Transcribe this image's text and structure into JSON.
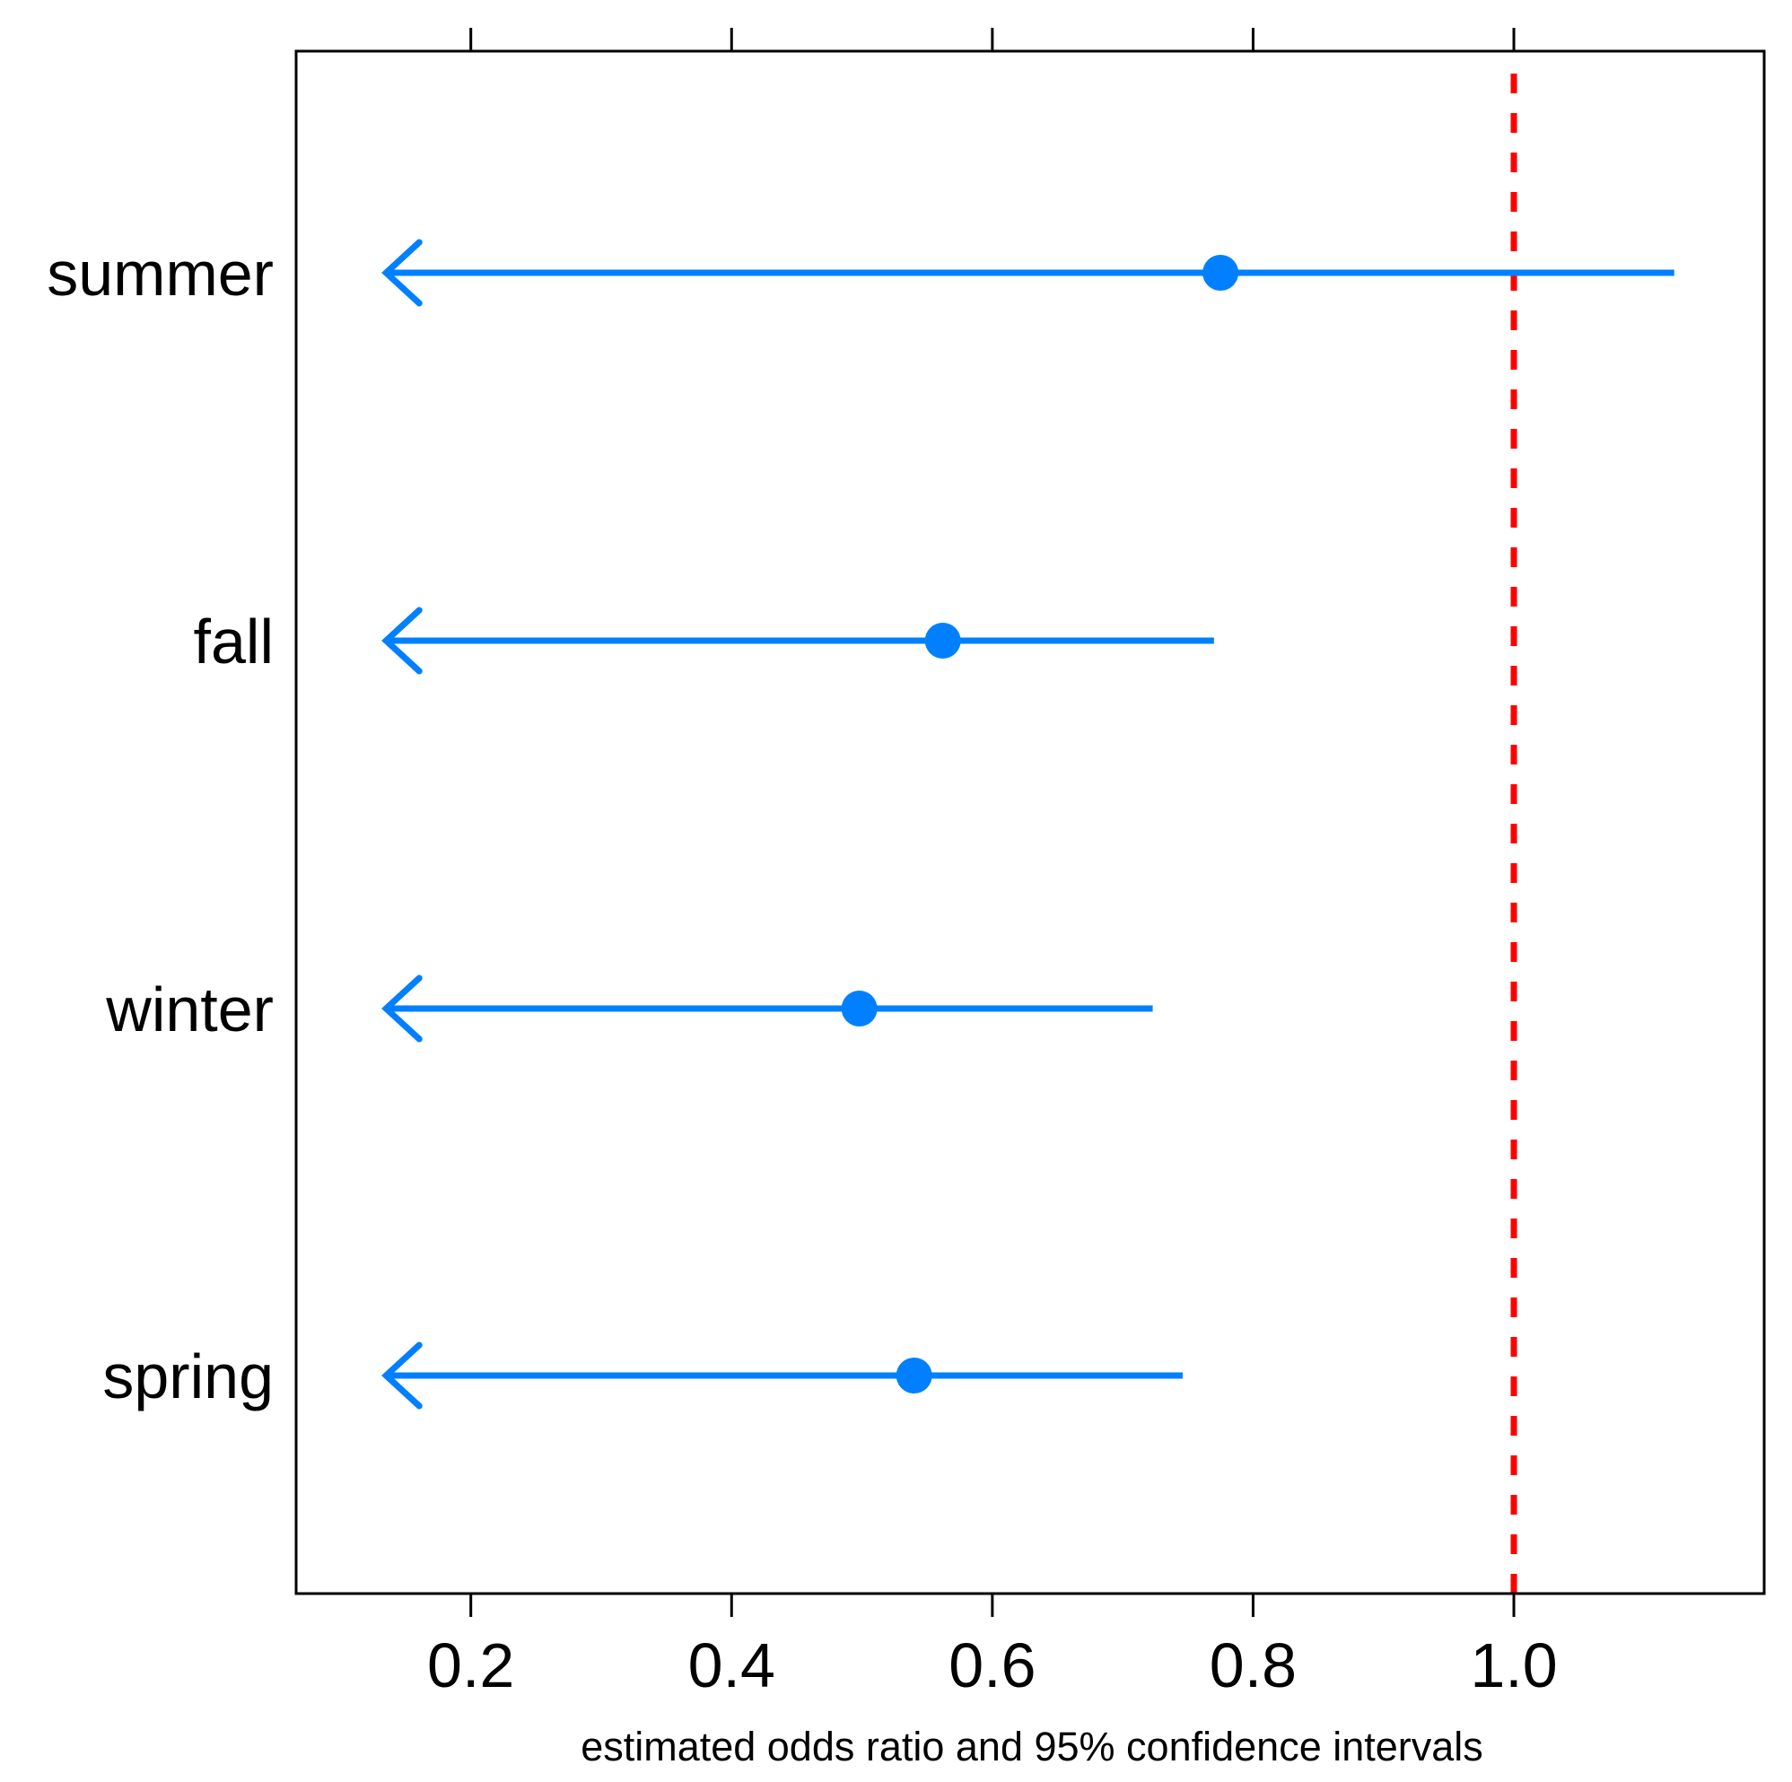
{
  "chart_data": {
    "type": "forest",
    "title": "",
    "xlabel": "estimated odds ratio and 95% confidence intervals",
    "ylabel": "",
    "xlim": [
      0.066,
      1.192
    ],
    "x_ticks": [
      0.2,
      0.4,
      0.6,
      0.8,
      1.0
    ],
    "x_tick_labels": [
      "0.2",
      "0.4",
      "0.6",
      "0.8",
      "1.0"
    ],
    "reference_line": {
      "x": 1.0,
      "style": "dashed",
      "color": "#FF0000"
    },
    "point_color": "#0080FF",
    "lower_bound_truncated_arrow": true,
    "grid": false,
    "categories": [
      "summer",
      "fall",
      "winter",
      "spring"
    ],
    "estimate": [
      0.775,
      0.562,
      0.498,
      0.54
    ],
    "lower": [
      0.135,
      0.135,
      0.135,
      0.135
    ],
    "upper": [
      1.123,
      0.77,
      0.723,
      0.746
    ]
  }
}
